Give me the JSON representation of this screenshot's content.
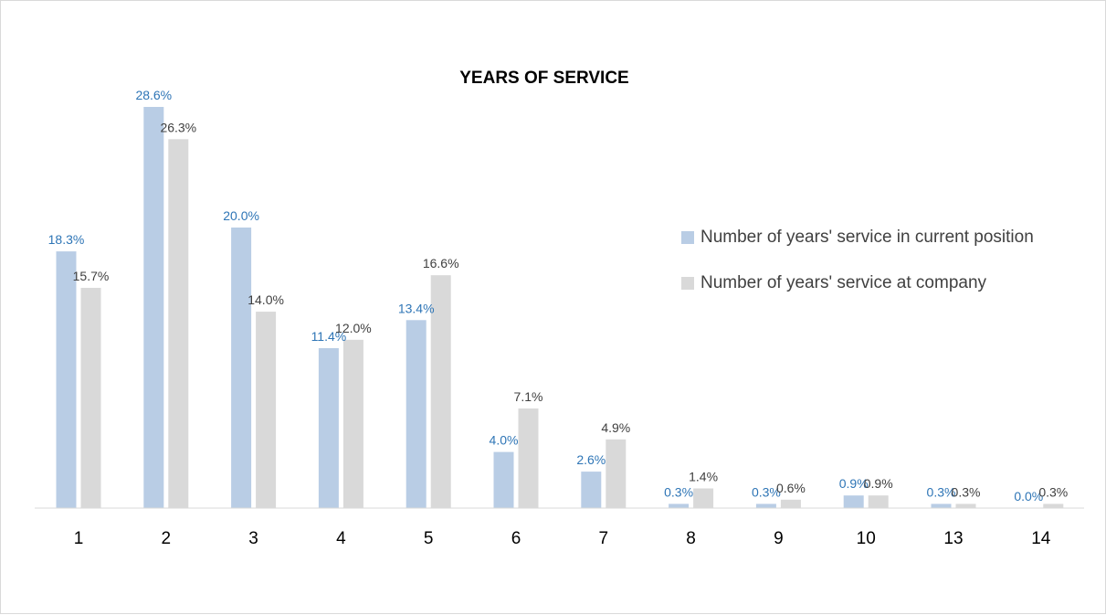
{
  "chart_data": {
    "type": "bar",
    "title": "YEARS OF SERVICE",
    "xlabel": "",
    "ylabel": "",
    "categories": [
      "1",
      "2",
      "3",
      "4",
      "5",
      "6",
      "7",
      "8",
      "9",
      "10",
      "13",
      "14"
    ],
    "series": [
      {
        "name": "Number of years' service in current position",
        "values": [
          18.3,
          28.6,
          20.0,
          11.4,
          13.4,
          4.0,
          2.6,
          0.3,
          0.3,
          0.9,
          0.3,
          0.0
        ],
        "labels": [
          "18.3%",
          "28.6%",
          "20.0%",
          "11.4%",
          "13.4%",
          "4.0%",
          "2.6%",
          "0.3%",
          "0.3%",
          "0.9%",
          "0.3%",
          "0.0%"
        ],
        "color": "#b9cde5",
        "label_color": "#2e75b6"
      },
      {
        "name": "Number of years' service at company",
        "values": [
          15.7,
          26.3,
          14.0,
          12.0,
          16.6,
          7.1,
          4.9,
          1.4,
          0.6,
          0.9,
          0.3,
          0.3
        ],
        "labels": [
          "15.7%",
          "26.3%",
          "14.0%",
          "12.0%",
          "16.6%",
          "7.1%",
          "4.9%",
          "1.4%",
          "0.6%",
          "0.9%",
          "0.3%",
          "0.3%"
        ],
        "color": "#d9d9d9",
        "label_color": "#404040"
      }
    ],
    "ylim": [
      0,
      30
    ],
    "grid": false,
    "legend_position": "right"
  }
}
